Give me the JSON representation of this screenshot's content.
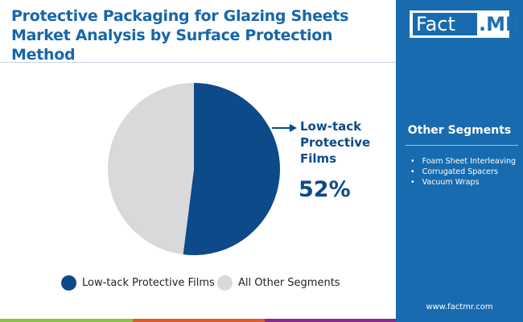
{
  "title": "Protective Packaging for Glazing Sheets Market Analysis by Surface Protection Method",
  "logo": {
    "part1": "Fact",
    "part2": ".MR"
  },
  "side_panel": {
    "heading": "Other Segments",
    "items": [
      "Foam Sheet Interleaving",
      "Corrugated Spacers",
      "Vacuum Wraps"
    ],
    "url": "www.factmr.com"
  },
  "chart_data": {
    "type": "pie",
    "slices": [
      {
        "label": "Low-tack Protective Films",
        "value": 52,
        "color": "#0d4a8a"
      },
      {
        "label": "All Other Segments",
        "value": 48,
        "color": "#d9d9dc"
      }
    ],
    "callout": {
      "label": "Low-tack Protective Films",
      "line1": "Low-tack",
      "line2": "Protective",
      "line3": "Films",
      "value": "52%"
    },
    "legend": "bottom"
  },
  "colors": {
    "accent": "#186bae",
    "bar": [
      "#8cbf45",
      "#e05a2b",
      "#8a2a8e"
    ]
  }
}
